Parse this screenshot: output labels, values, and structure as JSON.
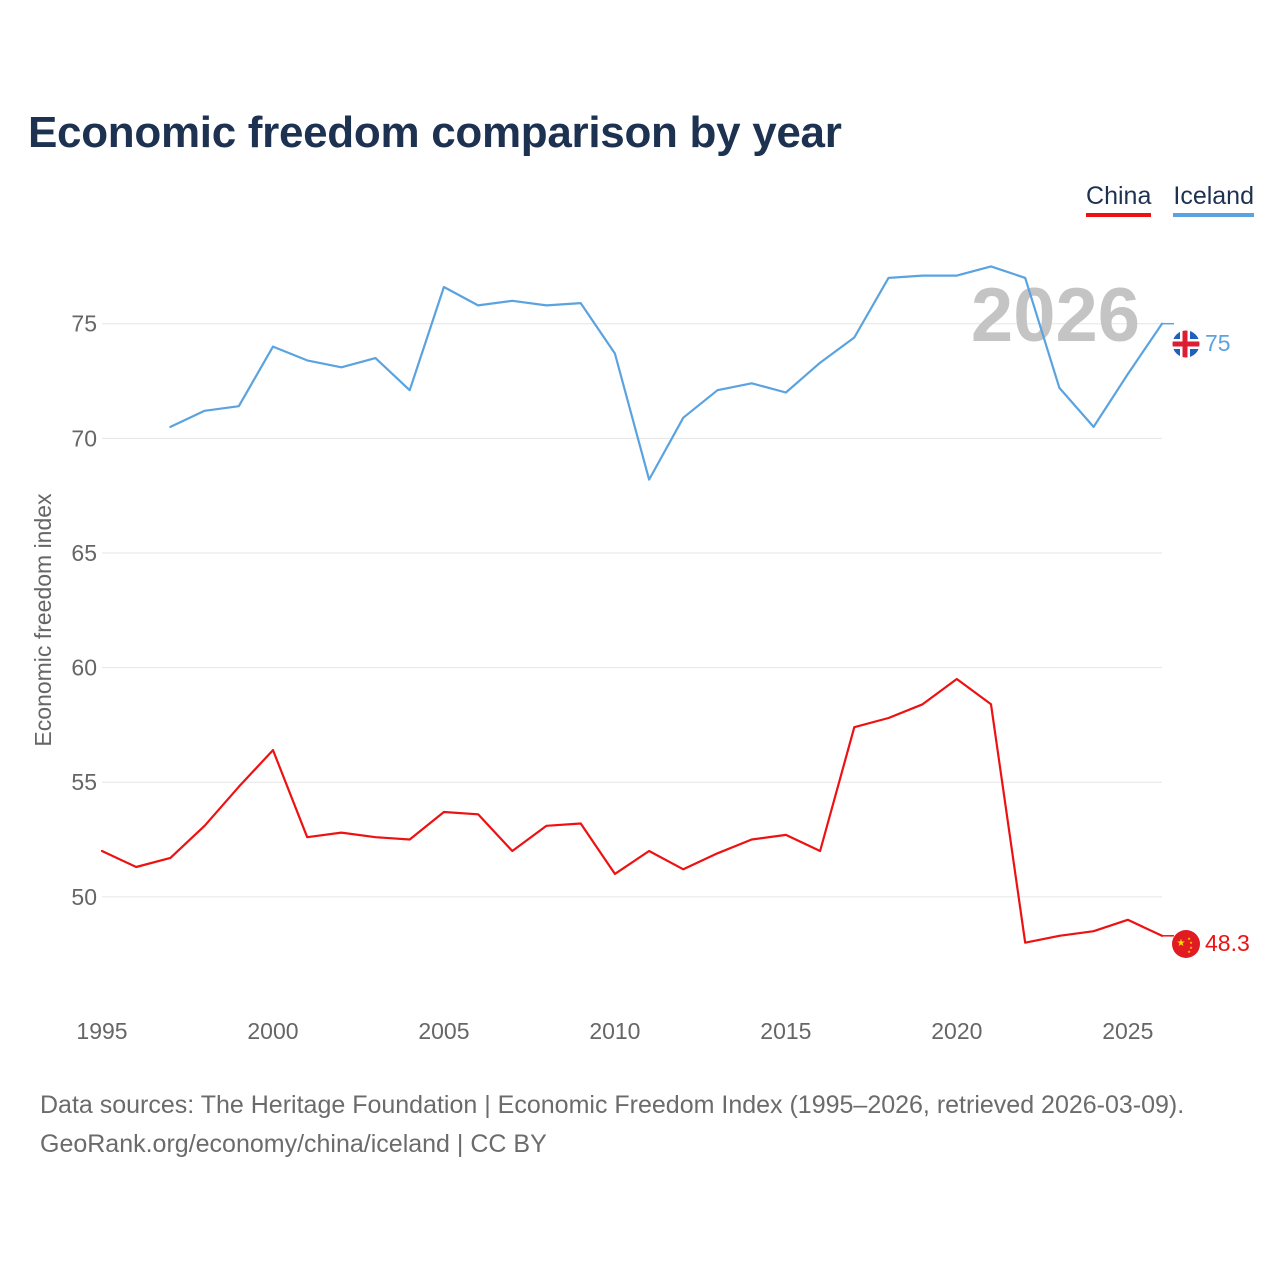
{
  "title": "Economic freedom comparison by year",
  "legend": [
    "China",
    "Iceland"
  ],
  "footer": {
    "source": "Data sources: The Heritage Foundation | Economic Freedom Index (1995–2026, retrieved 2026-03-09).",
    "credit": "GeoRank.org/economy/china/iceland | CC BY"
  },
  "colors": {
    "china": "#ee1111",
    "iceland": "#5aa3e0",
    "grid": "#e6e6e6",
    "axis_text": "#666666",
    "watermark": "#c4c4c4"
  },
  "chart_data": {
    "type": "line",
    "title": "Economic freedom comparison by year",
    "xlabel": "",
    "ylabel": "Economic freedom index",
    "xlim": [
      1995,
      2026
    ],
    "ylim": [
      45.5,
      79
    ],
    "x_ticks": [
      1995,
      2000,
      2005,
      2010,
      2015,
      2020,
      2025
    ],
    "y_ticks": [
      50,
      55,
      60,
      65,
      70,
      75
    ],
    "watermark": "2026",
    "grid": true,
    "legend_position": "top-right",
    "series": [
      {
        "name": "China",
        "key": "china",
        "end_label": "48.3",
        "x": [
          1995,
          1996,
          1997,
          1998,
          1999,
          2000,
          2001,
          2002,
          2003,
          2004,
          2005,
          2006,
          2007,
          2008,
          2009,
          2010,
          2011,
          2012,
          2013,
          2014,
          2015,
          2016,
          2017,
          2018,
          2019,
          2020,
          2021,
          2022,
          2023,
          2024,
          2025,
          2026
        ],
        "values": [
          52.0,
          51.3,
          51.7,
          53.1,
          54.8,
          56.4,
          52.6,
          52.8,
          52.6,
          52.5,
          53.7,
          53.6,
          52.0,
          53.1,
          53.2,
          51.0,
          52.0,
          51.2,
          51.9,
          52.5,
          52.7,
          52.0,
          57.4,
          57.8,
          58.4,
          59.5,
          58.4,
          48.0,
          48.3,
          48.5,
          49.0,
          48.3
        ]
      },
      {
        "name": "Iceland",
        "key": "iceland",
        "end_label": "75",
        "x": [
          1997,
          1998,
          1999,
          2000,
          2001,
          2002,
          2003,
          2004,
          2005,
          2006,
          2007,
          2008,
          2009,
          2010,
          2011,
          2012,
          2013,
          2014,
          2015,
          2016,
          2017,
          2018,
          2019,
          2020,
          2021,
          2022,
          2023,
          2024,
          2025,
          2026
        ],
        "values": [
          70.5,
          71.2,
          71.4,
          74.0,
          73.4,
          73.1,
          73.5,
          72.1,
          76.6,
          75.8,
          76.0,
          75.8,
          75.9,
          73.7,
          68.2,
          70.9,
          72.1,
          72.4,
          72.0,
          73.3,
          74.4,
          77.0,
          77.1,
          77.1,
          77.5,
          77.0,
          72.2,
          70.5,
          72.8,
          75.0
        ]
      }
    ]
  }
}
